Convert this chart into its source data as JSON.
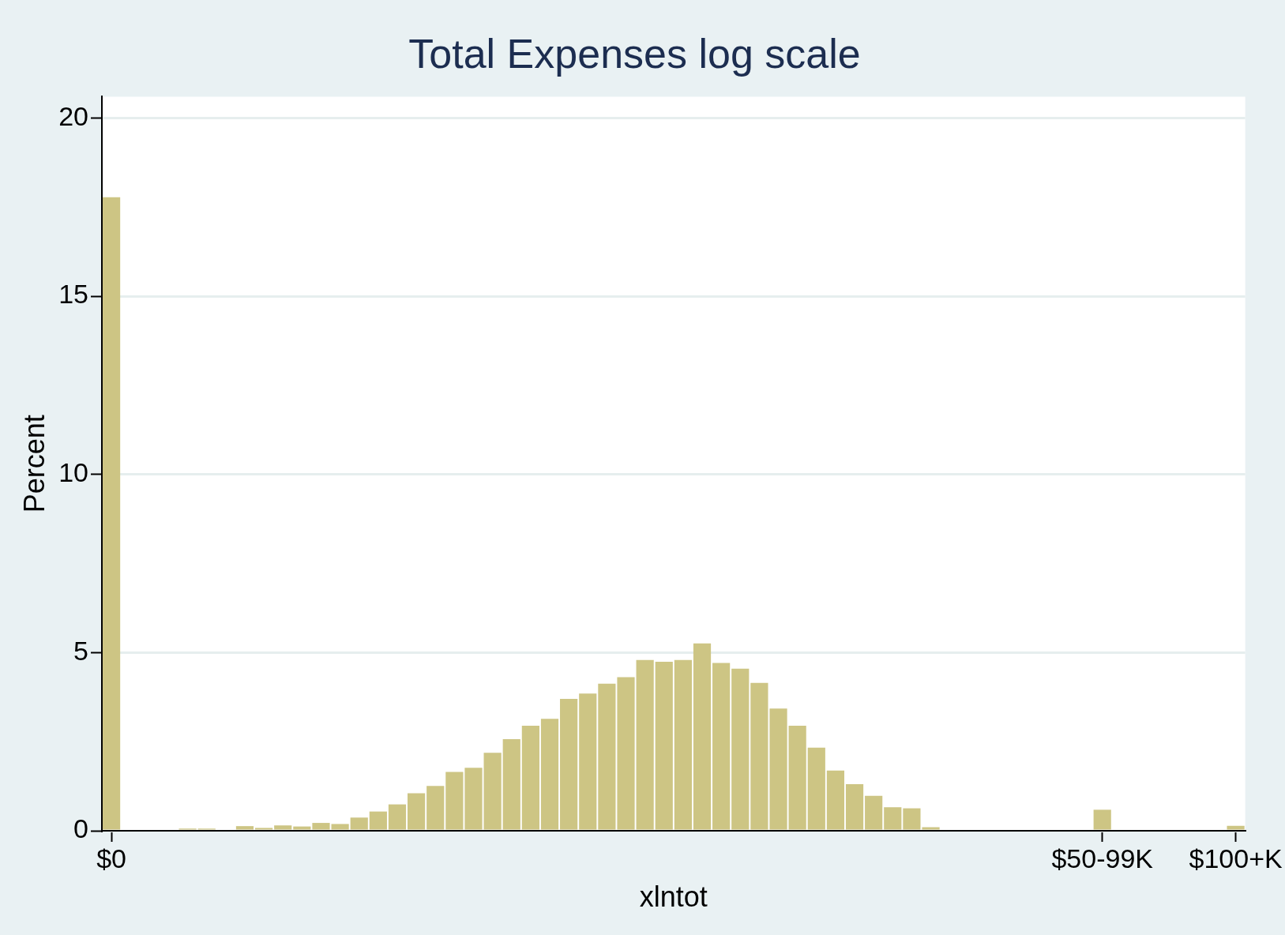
{
  "chart_data": {
    "type": "bar",
    "title": "Total Expenses log scale",
    "xlabel": "xlntot",
    "ylabel": "Percent",
    "categories": [
      "$0",
      null,
      null,
      null,
      null,
      null,
      null,
      null,
      null,
      null,
      null,
      null,
      null,
      null,
      null,
      null,
      null,
      null,
      null,
      null,
      null,
      null,
      null,
      null,
      null,
      null,
      null,
      null,
      null,
      null,
      null,
      null,
      null,
      null,
      null,
      null,
      null,
      null,
      null,
      null,
      null,
      null,
      null,
      null,
      null,
      null,
      null,
      null,
      null,
      null,
      null,
      null,
      "$50-99K",
      null,
      null,
      null,
      null,
      null,
      null,
      "$100+K"
    ],
    "values": [
      17.78,
      0,
      0,
      0,
      0.06,
      0.06,
      0,
      0.13,
      0.08,
      0.15,
      0.12,
      0.22,
      0.19,
      0.37,
      0.54,
      0.74,
      1.05,
      1.26,
      1.65,
      1.77,
      2.19,
      2.57,
      2.95,
      3.14,
      3.7,
      3.85,
      4.13,
      4.31,
      4.79,
      4.74,
      4.79,
      5.26,
      4.71,
      4.55,
      4.15,
      3.43,
      2.95,
      2.33,
      1.69,
      1.31,
      0.98,
      0.66,
      0.63,
      0.1,
      0,
      0,
      0,
      0,
      0,
      0,
      0,
      0,
      0.59,
      0,
      0,
      0,
      0,
      0,
      0,
      0.14
    ],
    "color": "#cdc584",
    "ylim": [
      0,
      20.6
    ],
    "yticks": [
      0,
      5,
      10,
      15,
      20
    ],
    "grid": "y",
    "legend": false
  }
}
